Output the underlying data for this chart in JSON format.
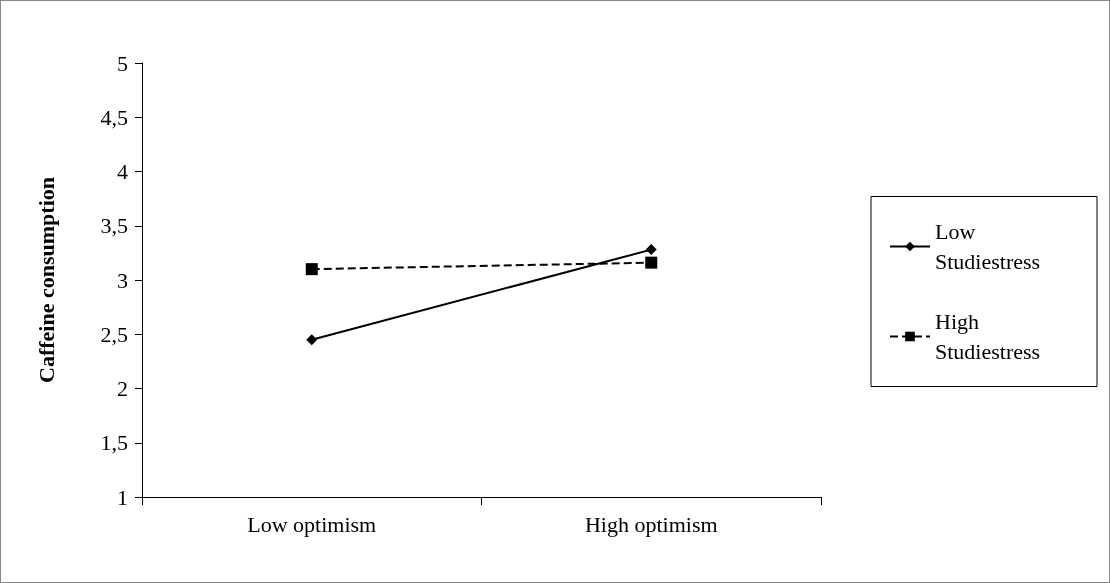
{
  "chart_data": {
    "type": "line",
    "ylabel": "Caffeine consumption",
    "categories": [
      "Low optimism",
      "High optimism"
    ],
    "series": [
      {
        "name": "Low Studiestress",
        "color": "#000000",
        "values": [
          2.45,
          3.28
        ],
        "marker": "diamond",
        "line_style": "solid"
      },
      {
        "name": "High Studiestress",
        "color": "#000000",
        "values": [
          3.1,
          3.16
        ],
        "marker": "square",
        "line_style": "dashed"
      }
    ],
    "ylim": [
      1,
      5
    ],
    "yticks": [
      1,
      {
        "value": 1.5,
        "label": "1,5"
      },
      2,
      {
        "value": 2.5,
        "label": "2,5"
      },
      3,
      {
        "value": 3.5,
        "label": "3,5"
      },
      4,
      {
        "value": 4.5,
        "label": "4,5"
      },
      5
    ],
    "grid": false,
    "legend": "right"
  }
}
